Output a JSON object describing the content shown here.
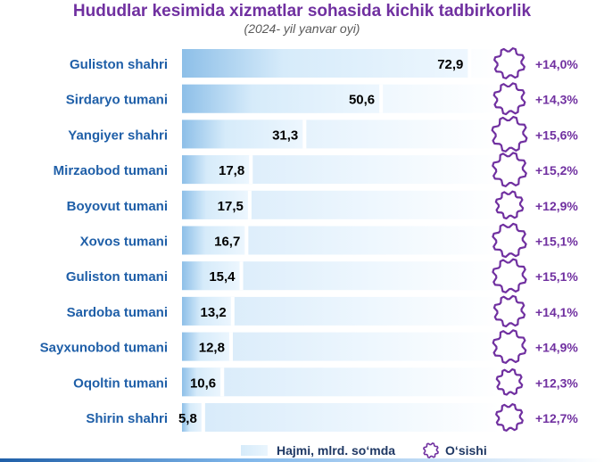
{
  "chart_data": {
    "type": "bar",
    "title": "Hududlar kesimida xizmatlar sohasida kichik tadbirkorlik",
    "subtitle": "(2024- yil yanvar oyi)",
    "categories": [
      "Guliston shahri",
      "Sirdaryo tumani",
      "Yangiyer shahri",
      "Mirzaobod tumani",
      "Boyovut tumani",
      "Xovos tumani",
      "Guliston tumani",
      "Sardoba tumani",
      "Sayxunobod tumani",
      "Oqoltin tumani",
      "Shirin shahri"
    ],
    "series": [
      {
        "name": "Hajmi, mlrd. so‘mda",
        "values": [
          72.9,
          50.6,
          31.3,
          17.8,
          17.5,
          16.7,
          15.4,
          13.2,
          12.8,
          10.6,
          5.8
        ]
      },
      {
        "name": "O‘sishi",
        "values": [
          14.0,
          14.3,
          15.6,
          15.2,
          12.9,
          15.1,
          15.1,
          14.1,
          14.9,
          12.3,
          12.7
        ]
      }
    ],
    "value_labels": [
      "72,9",
      "50,6",
      "31,3",
      "17,8",
      "17,5",
      "16,7",
      "15,4",
      "13,2",
      "12,8",
      "10,6",
      "5,8"
    ],
    "growth_labels": [
      "+14,0%",
      "+14,3%",
      "+15,6%",
      "+15,2%",
      "+12,9%",
      "+15,1%",
      "+15,1%",
      "+14,1%",
      "+14,9%",
      "+12,3%",
      "+12,7%"
    ],
    "legend": [
      "Hajmi, mlrd. so‘mda",
      "O‘sishi"
    ],
    "legend_position": "bottom",
    "grid": false,
    "colors": {
      "title": "#7030a0",
      "category_label": "#1f5fa8",
      "bar_fill": "#cfe6f8",
      "bar_value": "#000000",
      "gear": "#7030a0",
      "growth_label": "#7030a0"
    }
  }
}
